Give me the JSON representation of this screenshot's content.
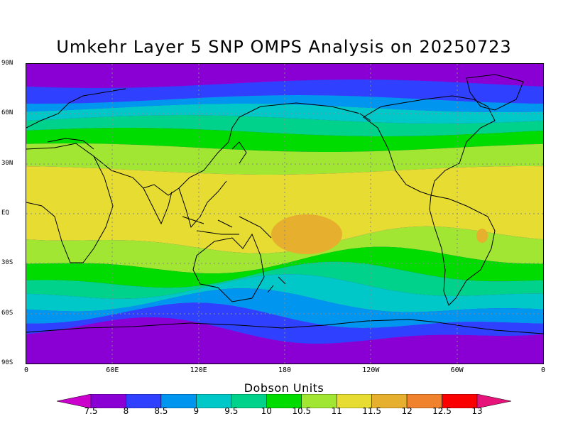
{
  "title": "Umkehr Layer 5 SNP OMPS Analysis on 20250723",
  "lat_labels": [
    "90N",
    "60N",
    "30N",
    "EQ",
    "30S",
    "60S",
    "90S"
  ],
  "lon_labels": [
    "0",
    "60E",
    "120E",
    "180",
    "120W",
    "60W",
    "0"
  ],
  "colorbar": {
    "title": "Dobson Units",
    "labels": [
      "7.5",
      "8",
      "8.5",
      "9",
      "9.5",
      "10",
      "10.5",
      "11",
      "11.5",
      "12",
      "12.5",
      "13"
    ],
    "colors": [
      "#cc00cc",
      "#8a00d4",
      "#3040ff",
      "#0096f0",
      "#00c8c8",
      "#00d28c",
      "#00dc00",
      "#a0e632",
      "#e6dc32",
      "#e6af2d",
      "#f0822d",
      "#fa0000",
      "#e6147a"
    ]
  },
  "field": {
    "band_colors_north_to_south": [
      "#8a00d4",
      "#3040ff",
      "#0096f0",
      "#00c8c8",
      "#00d28c",
      "#00dc00",
      "#a0e632",
      "#e6dc32",
      "#a0e632",
      "#00dc00",
      "#00d28c",
      "#00c8c8",
      "#0096f0",
      "#3040ff",
      "#8a00d4"
    ],
    "max_region_value": "12"
  }
}
